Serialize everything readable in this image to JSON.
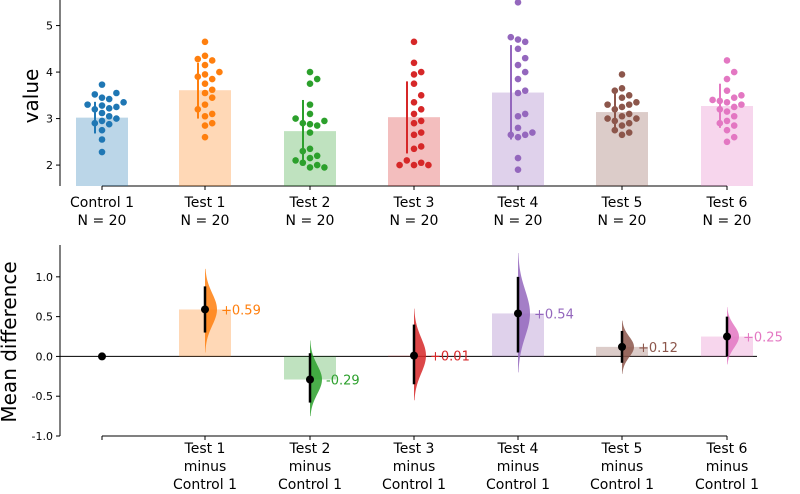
{
  "chart_data": [
    {
      "type": "bar",
      "subtype": "swarm-with-bars",
      "ylabel": "value",
      "ylim": [
        1.55,
        5.55
      ],
      "yticks": [
        2,
        3,
        4,
        5
      ],
      "groups": [
        {
          "name": "Control 1",
          "n_label": "N = 20",
          "color": "#1f77b4",
          "mean": 3.02,
          "sd_low": 2.68,
          "sd_high": 3.36,
          "points": [
            3.73,
            3.55,
            3.52,
            3.45,
            3.42,
            3.35,
            3.3,
            3.28,
            3.25,
            3.22,
            3.2,
            3.12,
            3.05,
            3.0,
            2.95,
            2.9,
            2.88,
            2.75,
            2.55,
            2.28
          ]
        },
        {
          "name": "Test 1",
          "n_label": "N = 20",
          "color": "#ff7f0e",
          "mean": 3.61,
          "sd_low": 3.0,
          "sd_high": 4.2,
          "points": [
            4.65,
            4.35,
            4.28,
            4.25,
            4.15,
            4.0,
            3.95,
            3.9,
            3.85,
            3.75,
            3.62,
            3.55,
            3.45,
            3.3,
            3.2,
            3.1,
            3.05,
            2.9,
            2.85,
            2.6
          ]
        },
        {
          "name": "Test 2",
          "n_label": "N = 20",
          "color": "#2ca02c",
          "mean": 2.73,
          "sd_low": 2.06,
          "sd_high": 3.4,
          "points": [
            4.0,
            3.85,
            3.75,
            3.3,
            3.1,
            3.0,
            2.95,
            2.9,
            2.88,
            2.85,
            2.7,
            2.35,
            2.3,
            2.2,
            2.15,
            2.1,
            2.05,
            2.0,
            1.95,
            1.95
          ]
        },
        {
          "name": "Test 3",
          "n_label": "N = 20",
          "color": "#d62728",
          "mean": 3.03,
          "sd_low": 2.25,
          "sd_high": 3.8,
          "points": [
            4.65,
            4.2,
            4.0,
            3.95,
            3.75,
            3.5,
            3.35,
            3.2,
            3.1,
            2.95,
            2.9,
            2.7,
            2.65,
            2.4,
            2.35,
            2.1,
            2.05,
            2.0,
            2.0,
            2.0
          ]
        },
        {
          "name": "Test 4",
          "n_label": "N = 20",
          "color": "#9467bd",
          "mean": 3.56,
          "sd_low": 2.55,
          "sd_high": 4.58,
          "points": [
            5.5,
            4.75,
            4.7,
            4.65,
            4.5,
            4.3,
            4.15,
            4.0,
            3.85,
            3.6,
            3.55,
            3.1,
            3.05,
            2.8,
            2.7,
            2.65,
            2.65,
            2.6,
            2.15,
            1.9
          ]
        },
        {
          "name": "Test 5",
          "n_label": "N = 20",
          "color": "#8c564b",
          "mean": 3.14,
          "sd_low": 2.75,
          "sd_high": 3.55,
          "points": [
            3.95,
            3.65,
            3.6,
            3.5,
            3.45,
            3.35,
            3.3,
            3.3,
            3.25,
            3.2,
            3.1,
            3.05,
            3.0,
            3.0,
            2.95,
            2.9,
            2.85,
            2.75,
            2.7,
            2.65
          ]
        },
        {
          "name": "Test 6",
          "n_label": "N = 20",
          "color": "#e377c2",
          "mean": 3.27,
          "sd_low": 2.8,
          "sd_high": 3.75,
          "points": [
            4.25,
            4.0,
            3.85,
            3.6,
            3.5,
            3.45,
            3.4,
            3.38,
            3.35,
            3.3,
            3.25,
            3.2,
            3.15,
            3.05,
            2.95,
            2.9,
            2.85,
            2.75,
            2.6,
            2.5
          ]
        }
      ]
    },
    {
      "type": "bar",
      "subtype": "effect-size",
      "ylabel": "Mean difference",
      "ylim": [
        -1.0,
        1.4
      ],
      "yticks": [
        -1.0,
        -0.5,
        0.0,
        0.5,
        1.0
      ],
      "ytick_labels": [
        "-1.0",
        "-0.5",
        "0.0",
        "0.5",
        "1.0"
      ],
      "zero_color": "#000000",
      "comparisons": [
        {
          "name": "Test 1 minus Control 1",
          "label_lines": [
            "Test 1",
            "minus",
            "Control 1"
          ],
          "color": "#ff7f0e",
          "diff": 0.59,
          "ci_low": 0.3,
          "ci_high": 0.88,
          "label": "+0.59",
          "dist_low": 0.05,
          "dist_high": 1.1
        },
        {
          "name": "Test 2 minus Control 1",
          "label_lines": [
            "Test 2",
            "minus",
            "Control 1"
          ],
          "color": "#2ca02c",
          "diff": -0.29,
          "ci_low": -0.58,
          "ci_high": 0.04,
          "label": "-0.29",
          "dist_low": -0.75,
          "dist_high": 0.2
        },
        {
          "name": "Test 3 minus Control 1",
          "label_lines": [
            "Test 3",
            "minus",
            "Control 1"
          ],
          "color": "#d62728",
          "diff": 0.01,
          "ci_low": -0.35,
          "ci_high": 0.4,
          "label": "+0.01",
          "dist_low": -0.55,
          "dist_high": 0.6
        },
        {
          "name": "Test 4 minus Control 1",
          "label_lines": [
            "Test 4",
            "minus",
            "Control 1"
          ],
          "color": "#9467bd",
          "diff": 0.54,
          "ci_low": 0.05,
          "ci_high": 1.0,
          "label": "+0.54",
          "dist_low": -0.2,
          "dist_high": 1.3
        },
        {
          "name": "Test 5 minus Control 1",
          "label_lines": [
            "Test 5",
            "minus",
            "Control 1"
          ],
          "color": "#8c564b",
          "diff": 0.12,
          "ci_low": -0.08,
          "ci_high": 0.32,
          "label": "+0.12",
          "dist_low": -0.22,
          "dist_high": 0.45
        },
        {
          "name": "Test 6 minus Control 1",
          "label_lines": [
            "Test 6",
            "minus",
            "Control 1"
          ],
          "color": "#e377c2",
          "diff": 0.25,
          "ci_low": 0.0,
          "ci_high": 0.5,
          "label": "+0.25",
          "dist_low": -0.1,
          "dist_high": 0.62
        }
      ]
    }
  ]
}
